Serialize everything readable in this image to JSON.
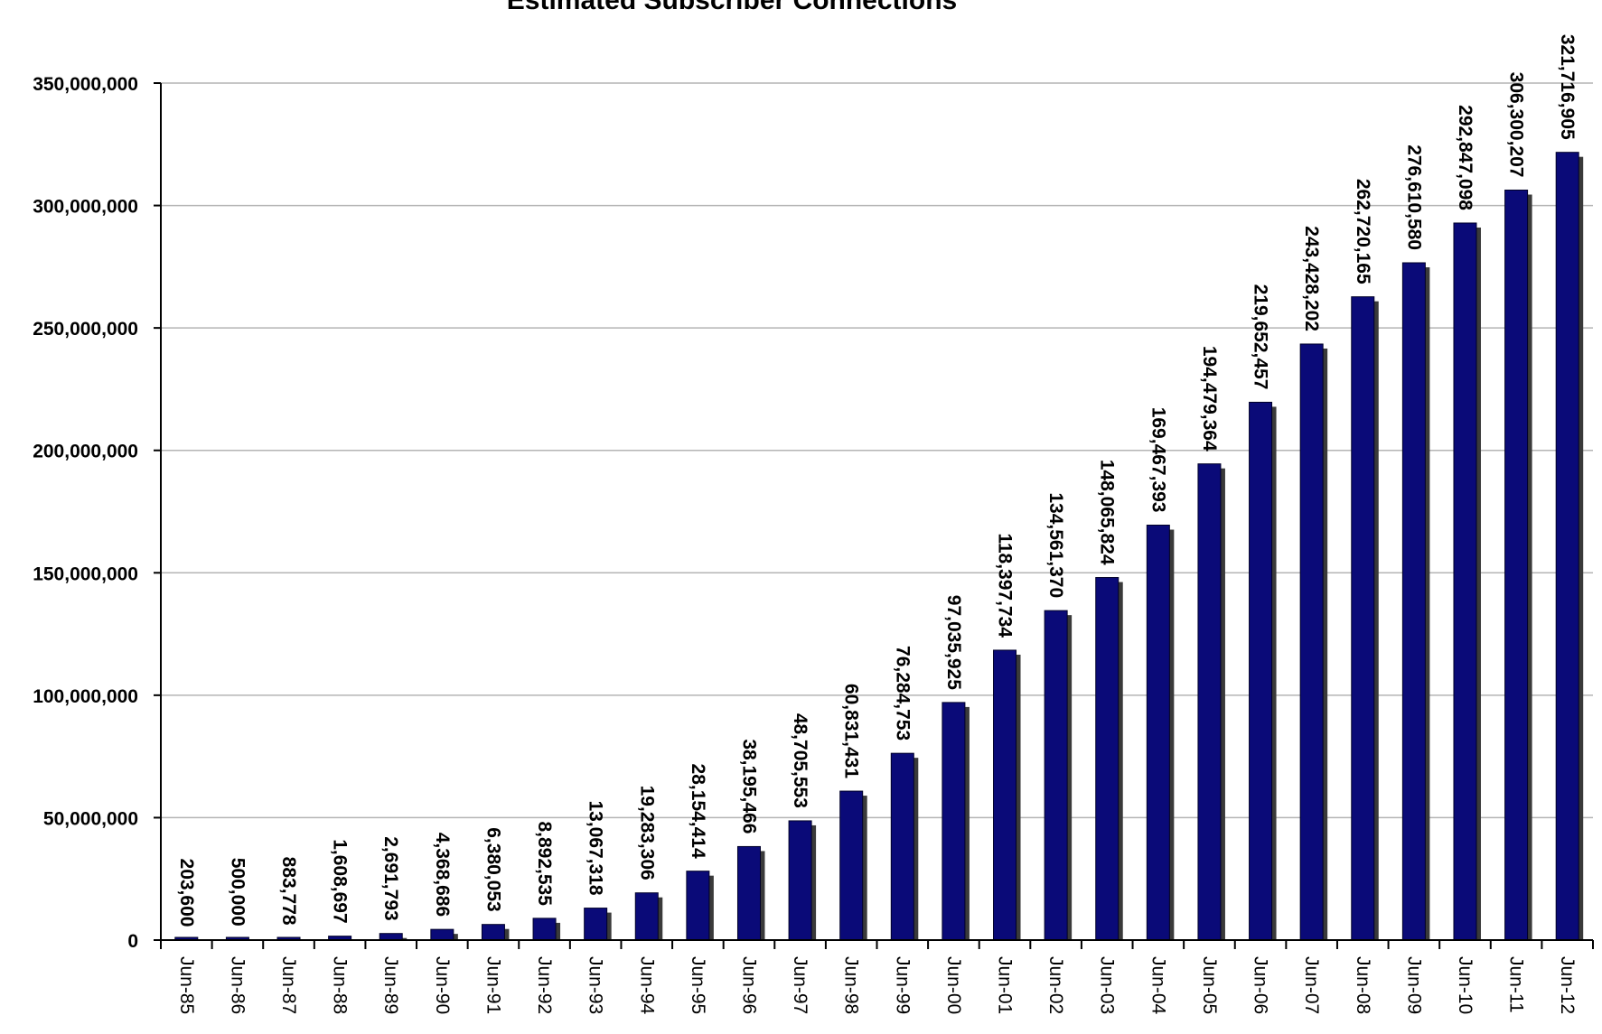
{
  "chart_data": {
    "type": "bar",
    "title": "Estimated Subscriber Connections",
    "xlabel": "",
    "ylabel": "",
    "ylim": [
      0,
      350000000
    ],
    "yticks": [
      "0",
      "50,000,000",
      "100,000,000",
      "150,000,000",
      "200,000,000",
      "250,000,000",
      "300,000,000",
      "350,000,000"
    ],
    "grid": true,
    "categories": [
      "Jun-85",
      "Jun-86",
      "Jun-87",
      "Jun-88",
      "Jun-89",
      "Jun-90",
      "Jun-91",
      "Jun-92",
      "Jun-93",
      "Jun-94",
      "Jun-95",
      "Jun-96",
      "Jun-97",
      "Jun-98",
      "Jun-99",
      "Jun-00",
      "Jun-01",
      "Jun-02",
      "Jun-03",
      "Jun-04",
      "Jun-05",
      "Jun-06",
      "Jun-07",
      "Jun-08",
      "Jun-09",
      "Jun-10",
      "Jun-11",
      "Jun-12"
    ],
    "values": [
      203600,
      500000,
      883778,
      1608697,
      2691793,
      4368686,
      6380053,
      8892535,
      13067318,
      19283306,
      28154414,
      38195466,
      48705553,
      60831431,
      76284753,
      97035925,
      118397734,
      134561370,
      148065824,
      169467393,
      194479364,
      219652457,
      243428202,
      262720165,
      276610580,
      292847098,
      306300207,
      321716905
    ],
    "value_labels": [
      "203,600",
      "500,000",
      "883,778",
      "1,608,697",
      "2,691,793",
      "4,368,686",
      "6,380,053",
      "8,892,535",
      "13,067,318",
      "19,283,306",
      "28,154,414",
      "38,195,466",
      "48,705,553",
      "60,831,431",
      "76,284,753",
      "97,035,925",
      "118,397,734",
      "134,561,370",
      "148,065,824",
      "169,467,393",
      "194,479,364",
      "219,652,457",
      "243,428,202",
      "262,720,165",
      "276,610,580",
      "292,847,098",
      "306,300,207",
      "321,716,905"
    ],
    "colors": {
      "bar": "#0a0a78",
      "shadow": "#3a3a3a",
      "grid": "#b4b4b4",
      "axis": "#000000"
    }
  }
}
